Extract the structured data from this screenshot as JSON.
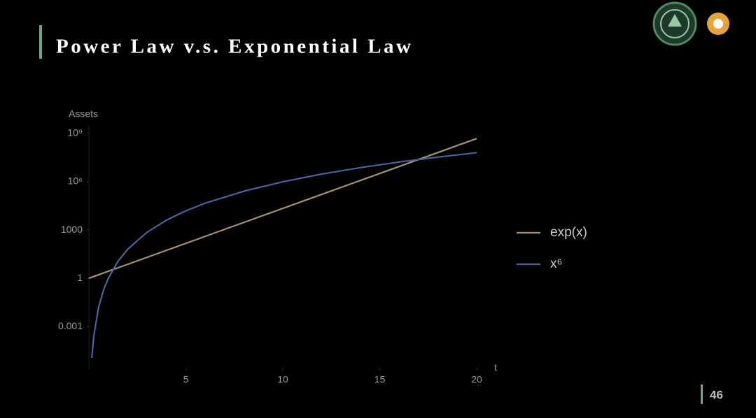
{
  "slide": {
    "title": "Power Law v.s. Exponential Law",
    "page_number": "46"
  },
  "chart_data": {
    "type": "line",
    "y_label": "Assets",
    "x_label": "t",
    "log_y": true,
    "grid": false,
    "legend": "right",
    "xlim": [
      0,
      20
    ],
    "ylim": [
      2.5e-06,
      3000000000
    ],
    "xticks": [
      5,
      10,
      15,
      20
    ],
    "yticks": [
      {
        "value": 1000000000,
        "label": "10⁹"
      },
      {
        "value": 1000000,
        "label": "10⁶"
      },
      1000,
      1,
      0.001
    ],
    "x": [
      0,
      0.15,
      0.25,
      0.5,
      0.75,
      1,
      1.5,
      2,
      3,
      4,
      5,
      6,
      8,
      10,
      12,
      14,
      16,
      18,
      20
    ],
    "series": [
      {
        "name": "exp(x)",
        "color": "#a39373",
        "values": [
          1,
          1.162,
          1.284,
          1.649,
          2.117,
          2.718,
          4.482,
          7.389,
          20.09,
          54.6,
          148.4,
          403.4,
          2981,
          22026,
          162755,
          1202604,
          8886111,
          65659969,
          485165195
        ]
      },
      {
        "name": "x⁶",
        "color": "#4a62a0",
        "values": [
          null,
          1.139e-05,
          0.0002441,
          0.015625,
          0.17798,
          1,
          11.39,
          64,
          729,
          4096,
          15625,
          46656,
          262144,
          1000000,
          2985984,
          7529536,
          16777216,
          34012224,
          64000000
        ]
      }
    ]
  }
}
